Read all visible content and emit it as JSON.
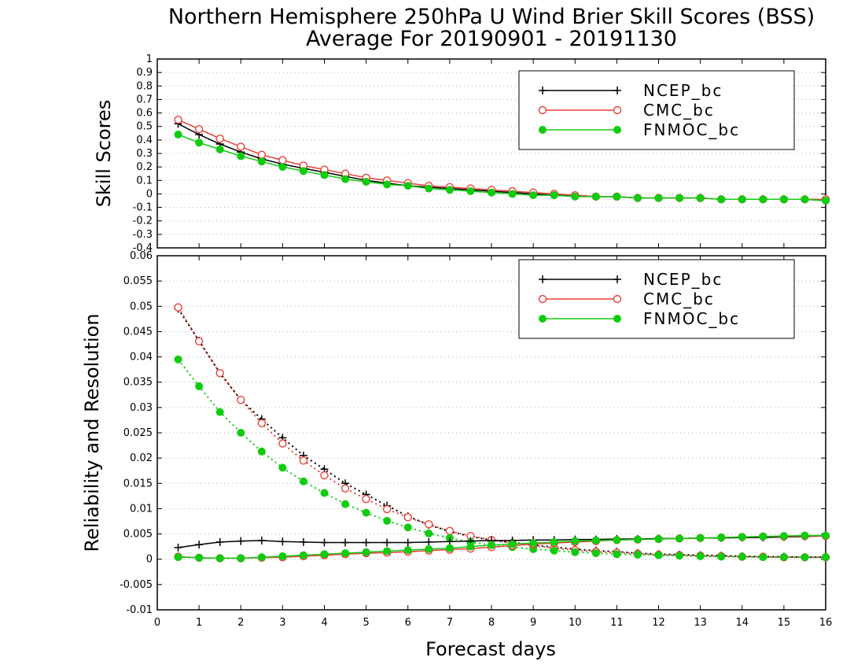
{
  "title_line1": "Northern Hemisphere 250hPa U Wind Brier Skill Scores (BSS)",
  "title_line2": "Average For 20190901 - 20191130",
  "xlabel": "Forecast days",
  "colors": {
    "NCEP_bc": "#000000",
    "CMC_bc": "#e8403a",
    "FNMOC_bc": "#10cc10"
  },
  "chart_data": [
    {
      "type": "line",
      "ylabel": "Skill Scores",
      "xlim": [
        0,
        16
      ],
      "ylim": [
        -0.4,
        1
      ],
      "x_ticks": [
        0,
        1,
        2,
        3,
        4,
        5,
        6,
        7,
        8,
        9,
        10,
        11,
        12,
        13,
        14,
        15,
        16
      ],
      "y_ticks": [
        -0.4,
        -0.3,
        -0.2,
        -0.1,
        0,
        0.1,
        0.2,
        0.3,
        0.4,
        0.5,
        0.6,
        0.7,
        0.8,
        0.9,
        1
      ],
      "y_tick_labels": [
        "-0.4",
        "-0.3",
        "-0.2",
        "-0.1",
        "0",
        "0.1",
        "0.2",
        "0.3",
        "0.4",
        "0.5",
        "0.6",
        "0.7",
        "0.8",
        "0.9",
        "1"
      ],
      "grid": true,
      "legend": {
        "position": "top-right",
        "entries": [
          "NCEP_bc",
          "CMC_bc",
          "FNMOC_bc"
        ]
      },
      "x": [
        0.5,
        1,
        1.5,
        2,
        2.5,
        3,
        3.5,
        4,
        4.5,
        5,
        5.5,
        6,
        6.5,
        7,
        7.5,
        8,
        8.5,
        9,
        9.5,
        10,
        10.5,
        11,
        11.5,
        12,
        12.5,
        13,
        13.5,
        14,
        14.5,
        15,
        15.5,
        16
      ],
      "series": [
        {
          "name": "NCEP_bc",
          "marker": "plus",
          "style": "solid",
          "values": [
            0.52,
            0.44,
            0.37,
            0.31,
            0.26,
            0.22,
            0.19,
            0.16,
            0.13,
            0.1,
            0.08,
            0.06,
            0.05,
            0.04,
            0.03,
            0.02,
            0.01,
            0.0,
            -0.01,
            -0.01,
            -0.02,
            -0.02,
            -0.03,
            -0.03,
            -0.03,
            -0.03,
            -0.04,
            -0.04,
            -0.04,
            -0.04,
            -0.04,
            -0.05
          ]
        },
        {
          "name": "CMC_bc",
          "marker": "open-circle",
          "style": "solid",
          "values": [
            0.55,
            0.48,
            0.41,
            0.35,
            0.29,
            0.25,
            0.21,
            0.18,
            0.15,
            0.12,
            0.1,
            0.08,
            0.06,
            0.05,
            0.04,
            0.03,
            0.02,
            0.01,
            0.0,
            -0.01,
            -0.02,
            -0.02,
            -0.03,
            -0.03,
            -0.03,
            -0.03,
            -0.04,
            -0.04,
            -0.04,
            -0.04,
            -0.04,
            -0.04
          ]
        },
        {
          "name": "FNMOC_bc",
          "marker": "filled-circle",
          "style": "solid",
          "values": [
            0.44,
            0.38,
            0.33,
            0.28,
            0.24,
            0.2,
            0.17,
            0.14,
            0.11,
            0.09,
            0.07,
            0.06,
            0.04,
            0.03,
            0.02,
            0.01,
            0.0,
            -0.01,
            -0.01,
            -0.02,
            -0.02,
            -0.02,
            -0.03,
            -0.03,
            -0.03,
            -0.03,
            -0.04,
            -0.04,
            -0.04,
            -0.04,
            -0.04,
            -0.05
          ]
        }
      ]
    },
    {
      "type": "line",
      "ylabel": "Reliability and Resolution",
      "xlim": [
        0,
        16
      ],
      "ylim": [
        -0.01,
        0.06
      ],
      "x_ticks": [
        0,
        1,
        2,
        3,
        4,
        5,
        6,
        7,
        8,
        9,
        10,
        11,
        12,
        13,
        14,
        15,
        16
      ],
      "y_ticks": [
        -0.01,
        -0.005,
        0,
        0.005,
        0.01,
        0.015,
        0.02,
        0.025,
        0.03,
        0.035,
        0.04,
        0.045,
        0.05,
        0.055,
        0.06
      ],
      "y_tick_labels": [
        "-0.01",
        "-0.005",
        "0",
        "0.005",
        "0.01",
        "0.015",
        "0.02",
        "0.025",
        "0.03",
        "0.035",
        "0.04",
        "0.045",
        "0.05",
        "0.055",
        "0.06"
      ],
      "grid": true,
      "legend": {
        "position": "top-right",
        "entries": [
          "NCEP_bc",
          "CMC_bc",
          "FNMOC_bc"
        ]
      },
      "x": [
        0.5,
        1,
        1.5,
        2,
        2.5,
        3,
        3.5,
        4,
        4.5,
        5,
        5.5,
        6,
        6.5,
        7,
        7.5,
        8,
        8.5,
        9,
        9.5,
        10,
        10.5,
        11,
        11.5,
        12,
        12.5,
        13,
        13.5,
        14,
        14.5,
        15,
        15.5,
        16
      ],
      "series": [
        {
          "name": "NCEP_bc",
          "marker": "plus",
          "style": "dotted",
          "values": [
            0.0495,
            0.0432,
            0.0368,
            0.0315,
            0.0277,
            0.024,
            0.0205,
            0.0178,
            0.015,
            0.0128,
            0.0106,
            0.0085,
            0.0068,
            0.0055,
            0.0045,
            0.0038,
            0.0033,
            0.0028,
            0.0024,
            0.002,
            0.0017,
            0.0015,
            0.0012,
            0.001,
            0.0009,
            0.0008,
            0.0007,
            0.0006,
            0.0005,
            0.0005,
            0.0004,
            0.0004
          ]
        },
        {
          "name": "CMC_bc",
          "marker": "open-circle",
          "style": "dotted",
          "values": [
            0.0498,
            0.0431,
            0.0368,
            0.0315,
            0.0269,
            0.0229,
            0.0195,
            0.0166,
            0.014,
            0.0119,
            0.0099,
            0.0083,
            0.0069,
            0.0056,
            0.0046,
            0.0038,
            0.0032,
            0.0027,
            0.0022,
            0.0018,
            0.0015,
            0.0013,
            0.0011,
            0.0009,
            0.0008,
            0.0007,
            0.0006,
            0.0005,
            0.0005,
            0.0004,
            0.0004,
            0.0004
          ]
        },
        {
          "name": "FNMOC_bc",
          "marker": "filled-circle",
          "style": "dotted",
          "values": [
            0.0395,
            0.0342,
            0.0291,
            0.025,
            0.0213,
            0.0181,
            0.0154,
            0.0131,
            0.0109,
            0.0092,
            0.0076,
            0.0063,
            0.0051,
            0.0042,
            0.0034,
            0.0028,
            0.0024,
            0.002,
            0.0017,
            0.0014,
            0.0012,
            0.001,
            0.0009,
            0.0008,
            0.0007,
            0.0006,
            0.0005,
            0.0005,
            0.0004,
            0.0004,
            0.0004,
            0.0004
          ]
        },
        {
          "name": "NCEP_bc",
          "marker": "plus",
          "style": "solid",
          "values": [
            0.0023,
            0.0029,
            0.0034,
            0.0036,
            0.0037,
            0.0035,
            0.0034,
            0.0033,
            0.0033,
            0.0033,
            0.0033,
            0.0033,
            0.0034,
            0.0035,
            0.0036,
            0.0037,
            0.0037,
            0.0038,
            0.0038,
            0.0039,
            0.0039,
            0.004,
            0.004,
            0.0041,
            0.0041,
            0.0042,
            0.0042,
            0.0043,
            0.0043,
            0.0044,
            0.0045,
            0.0046
          ]
        },
        {
          "name": "CMC_bc",
          "marker": "open-circle",
          "style": "solid",
          "values": [
            0.0005,
            0.0003,
            0.0002,
            0.0002,
            0.0003,
            0.0004,
            0.0006,
            0.0008,
            0.001,
            0.0012,
            0.0013,
            0.0015,
            0.0017,
            0.0019,
            0.0021,
            0.0024,
            0.0027,
            0.003,
            0.0032,
            0.0034,
            0.0036,
            0.0038,
            0.0039,
            0.004,
            0.0041,
            0.0042,
            0.0043,
            0.0044,
            0.0045,
            0.0045,
            0.0046,
            0.0046
          ]
        },
        {
          "name": "FNMOC_bc",
          "marker": "filled-circle",
          "style": "solid",
          "values": [
            0.0004,
            0.0003,
            0.0002,
            0.0002,
            0.0004,
            0.0006,
            0.0008,
            0.001,
            0.0012,
            0.0014,
            0.0016,
            0.0018,
            0.002,
            0.0022,
            0.0025,
            0.0028,
            0.003,
            0.0032,
            0.0034,
            0.0036,
            0.0037,
            0.0038,
            0.0039,
            0.004,
            0.0041,
            0.0042,
            0.0043,
            0.0044,
            0.0045,
            0.0046,
            0.0047,
            0.0047
          ]
        }
      ]
    }
  ]
}
